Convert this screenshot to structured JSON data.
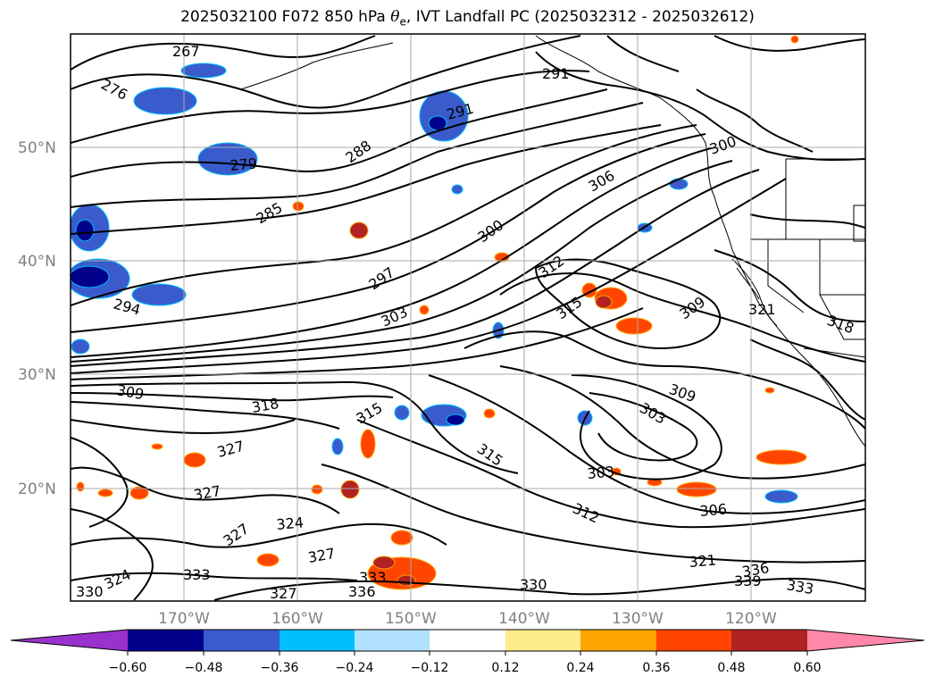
{
  "title": {
    "prefix": "2025032100 F072 850 hPa ",
    "theta_symbol": "θ",
    "theta_sub": "e",
    "suffix": ", IVT Landfall PC (2025032312 - 2025032612)"
  },
  "map": {
    "lat_ticks": [
      "50°N",
      "40°N",
      "30°N",
      "20°N"
    ],
    "lon_ticks": [
      "170°W",
      "160°W",
      "150°W",
      "140°W",
      "130°W",
      "120°W"
    ],
    "contour_labels": [
      "267",
      "276",
      "279",
      "285",
      "288",
      "291",
      "294",
      "297",
      "300",
      "303",
      "306",
      "309",
      "312",
      "315",
      "318",
      "321",
      "324",
      "327",
      "330",
      "333",
      "336",
      "339"
    ]
  },
  "colorbar": {
    "tick_labels": [
      "−0.60",
      "−0.48",
      "−0.36",
      "−0.24",
      "−0.12",
      "0.12",
      "0.24",
      "0.36",
      "0.48",
      "0.60"
    ],
    "colors": [
      "#9932cc",
      "#00008b",
      "#3a5bcc",
      "#00bfff",
      "#b0e2ff",
      "#ffffff",
      "#ffec8b",
      "#ffa500",
      "#ff4500",
      "#b22222",
      "#ff88aa"
    ]
  },
  "colors": {
    "contour": "#000000",
    "grid": "#a9a9a9",
    "tick_label": "#808080"
  }
}
